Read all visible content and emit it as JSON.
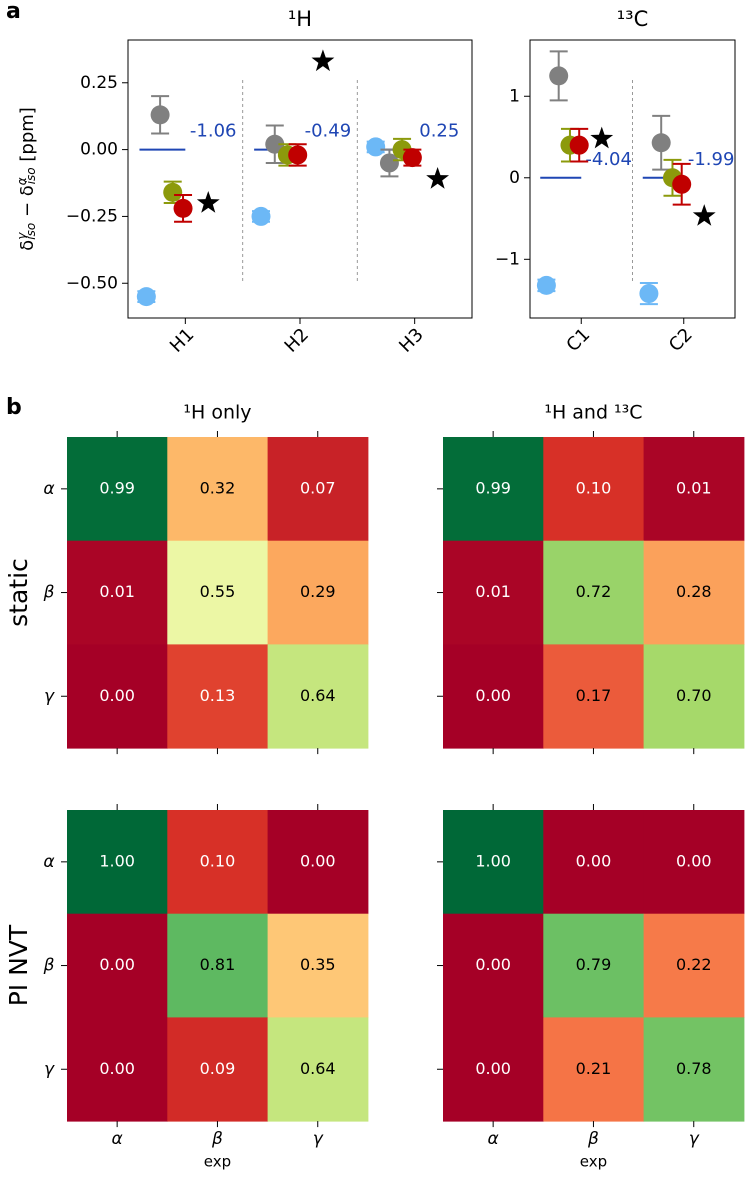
{
  "panel_labels": [
    "a",
    "b"
  ],
  "chart_data": [
    {
      "type": "errorbar",
      "title": "¹H",
      "ylabel": [
        "δ",
        "γ",
        "iso",
        " − δ",
        "α",
        "iso",
        " [ppm]"
      ],
      "categories": [
        "H1",
        "H2",
        "H3"
      ],
      "ylim": [
        -0.63,
        0.41
      ],
      "yticks": [
        {
          "value": -0.5,
          "label": "−0.50"
        },
        {
          "value": -0.25,
          "label": "−0.25"
        },
        {
          "value": 0,
          "label": "0.00"
        },
        {
          "value": 0.25,
          "label": "0.25"
        }
      ],
      "series": [
        {
          "marker": "hline",
          "color": "#1f46b4",
          "values": [
            0,
            0,
            0
          ],
          "value_labels": [
            "-1.06",
            "-0.49",
            "0.25"
          ]
        },
        {
          "marker": "circle",
          "color": "#6cb8f6",
          "values": [
            -0.55,
            -0.25,
            0.01
          ],
          "errors": [
            0.02,
            0.02,
            0.02
          ]
        },
        {
          "marker": "circle",
          "color": "#808080",
          "values": [
            0.13,
            0.02,
            -0.05
          ],
          "errors": [
            0.07,
            0.07,
            0.05
          ]
        },
        {
          "marker": "circle",
          "color": "#8c9a0c",
          "values": [
            -0.16,
            -0.02,
            0.0
          ],
          "errors": [
            0.04,
            0.04,
            0.04
          ]
        },
        {
          "marker": "circle",
          "color": "#c00000",
          "values": [
            -0.22,
            -0.02,
            -0.03
          ],
          "errors": [
            0.05,
            0.04,
            0.03
          ]
        },
        {
          "marker": "star",
          "color": "#000000",
          "values": [
            -0.2,
            0.33,
            -0.11
          ]
        }
      ]
    },
    {
      "type": "errorbar",
      "title": "¹³C",
      "categories": [
        "C1",
        "C2"
      ],
      "ylim": [
        -1.72,
        1.69
      ],
      "yticks": [
        {
          "value": -1,
          "label": "−1"
        },
        0,
        1
      ],
      "series": [
        {
          "marker": "hline",
          "color": "#1f46b4",
          "values": [
            0,
            0
          ],
          "value_labels": [
            "-4.04",
            "-1.99"
          ]
        },
        {
          "marker": "circle",
          "color": "#6cb8f6",
          "values": [
            -1.32,
            -1.42
          ],
          "errors": [
            0.07,
            0.13
          ]
        },
        {
          "marker": "circle",
          "color": "#808080",
          "values": [
            1.25,
            0.43
          ],
          "errors": [
            0.3,
            0.33
          ]
        },
        {
          "marker": "circle",
          "color": "#8c9a0c",
          "values": [
            0.4,
            0.0
          ],
          "errors": [
            0.2,
            0.22
          ]
        },
        {
          "marker": "circle",
          "color": "#c00000",
          "values": [
            0.4,
            -0.08
          ],
          "errors": [
            0.2,
            0.25
          ]
        },
        {
          "marker": "star",
          "color": "#000000",
          "values": [
            0.48,
            -0.47
          ]
        }
      ]
    },
    {
      "type": "heatmap",
      "title": "¹H only",
      "ylabel": "static",
      "colormap": "RdYlGn",
      "clim": [
        0,
        1
      ],
      "row_labels": [
        "α",
        "β",
        "γ"
      ],
      "values": [
        [
          0.99,
          0.32,
          0.07
        ],
        [
          0.01,
          0.55,
          0.29
        ],
        [
          0.0,
          0.13,
          0.64
        ]
      ],
      "value_labels": [
        [
          "0.99",
          "0.32",
          "0.07"
        ],
        [
          "0.01",
          "0.55",
          "0.29"
        ],
        [
          "0.00",
          "0.13",
          "0.64"
        ]
      ]
    },
    {
      "type": "heatmap",
      "title": "¹H and ¹³C",
      "colormap": "RdYlGn",
      "clim": [
        0,
        1
      ],
      "values": [
        [
          0.99,
          0.1,
          0.01
        ],
        [
          0.01,
          0.72,
          0.28
        ],
        [
          0.0,
          0.17,
          0.7
        ]
      ],
      "value_labels": [
        [
          "0.99",
          "0.10",
          "0.01"
        ],
        [
          "0.01",
          "0.72",
          "0.28"
        ],
        [
          "0.00",
          "0.17",
          "0.70"
        ]
      ]
    },
    {
      "type": "heatmap",
      "ylabel": "PI NVT",
      "xlabel": "exp",
      "colormap": "RdYlGn",
      "clim": [
        0,
        1
      ],
      "row_labels": [
        "α",
        "β",
        "γ"
      ],
      "col_labels": [
        "α",
        "β",
        "γ"
      ],
      "values": [
        [
          1.0,
          0.1,
          0.0
        ],
        [
          0.0,
          0.81,
          0.35
        ],
        [
          0.0,
          0.09,
          0.64
        ]
      ],
      "value_labels": [
        [
          "1.00",
          "0.10",
          "0.00"
        ],
        [
          "0.00",
          "0.81",
          "0.35"
        ],
        [
          "0.00",
          "0.09",
          "0.64"
        ]
      ]
    },
    {
      "type": "heatmap",
      "xlabel": "exp",
      "colormap": "RdYlGn",
      "clim": [
        0,
        1
      ],
      "col_labels": [
        "α",
        "β",
        "γ"
      ],
      "values": [
        [
          1.0,
          0.0,
          0.0
        ],
        [
          0.0,
          0.79,
          0.22
        ],
        [
          0.0,
          0.21,
          0.78
        ]
      ],
      "value_labels": [
        [
          "1.00",
          "0.00",
          "0.00"
        ],
        [
          "0.00",
          "0.79",
          "0.22"
        ],
        [
          "0.00",
          "0.21",
          "0.78"
        ]
      ]
    }
  ]
}
